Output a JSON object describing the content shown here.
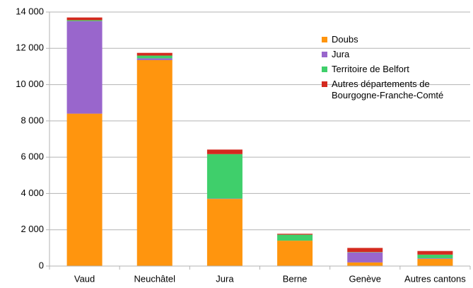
{
  "chart_data": {
    "type": "stacked-bar",
    "categories": [
      "Vaud",
      "Neuchâtel",
      "Jura",
      "Berne",
      "Genève",
      "Autres cantons"
    ],
    "series": [
      {
        "name": "Doubs",
        "color": "#ff950e",
        "values": [
          8400,
          11350,
          3700,
          1400,
          200,
          400
        ]
      },
      {
        "name": "Jura",
        "color": "#9966cc",
        "values": [
          5100,
          100,
          20,
          0,
          550,
          30
        ]
      },
      {
        "name": "Territoire de Belfort",
        "color": "#3fcf6b",
        "values": [
          50,
          150,
          2450,
          330,
          20,
          200
        ]
      },
      {
        "name": "Autres départements de Bourgogne-Franche-Comté",
        "color": "#d42a1f",
        "values": [
          150,
          150,
          250,
          50,
          230,
          200
        ]
      }
    ],
    "ylim": [
      0,
      14000
    ],
    "yticks": [
      0,
      {
        "value": 2000,
        "label": "2 000"
      },
      {
        "value": 4000,
        "label": "4 000"
      },
      {
        "value": 6000,
        "label": "6 000"
      },
      {
        "value": 8000,
        "label": "8 000"
      },
      {
        "value": 10000,
        "label": "10 000"
      },
      {
        "value": 12000,
        "label": "12 000"
      },
      {
        "value": 14000,
        "label": "14 000"
      }
    ],
    "grid": true
  }
}
